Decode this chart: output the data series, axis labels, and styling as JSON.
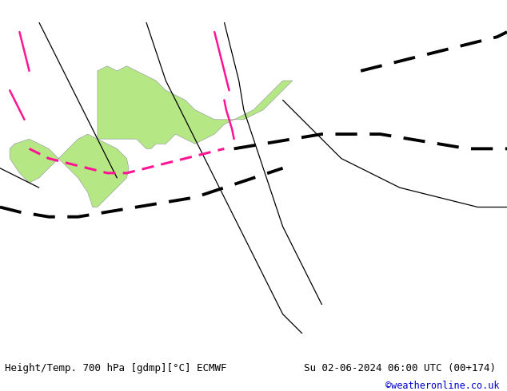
{
  "title_left": "Height/Temp. 700 hPa [gdmp][°C] ECMWF",
  "title_right": "Su 02-06-2024 06:00 UTC (00+174)",
  "title_right2": "©weatheronline.co.uk",
  "bg_land_green": "#b5e884",
  "bg_land_gray": "#d4d4d4",
  "bg_sea": "#c8c8d0",
  "border_color": "#9090a0",
  "text_color": "#000000",
  "title_color2": "#0000cc",
  "font_size_title": 9,
  "xlim": [
    -10,
    42
  ],
  "ylim": [
    24,
    56
  ],
  "figsize": [
    6.34,
    4.9
  ],
  "dpi": 100,
  "map_extent": [
    -10,
    42,
    24,
    56
  ],
  "black_thin_lines": [
    {
      "lon": [
        -6,
        -5,
        -4,
        -3,
        -2,
        -1,
        0,
        1,
        1.5,
        2
      ],
      "lat": [
        56,
        54,
        52,
        50,
        48,
        46,
        44,
        42,
        41,
        40
      ]
    },
    {
      "lon": [
        13,
        13.5,
        14,
        14.5,
        15,
        16,
        17,
        18,
        19,
        20,
        21,
        22,
        23
      ],
      "lat": [
        56,
        54,
        52,
        50,
        47,
        44,
        41,
        38,
        35,
        33,
        31,
        29,
        27
      ]
    },
    {
      "lon": [
        5,
        6,
        7,
        8,
        9,
        10,
        11,
        12,
        13,
        14,
        15,
        16,
        17,
        18,
        19,
        20,
        21
      ],
      "lat": [
        56,
        53,
        50,
        48,
        46,
        44,
        42,
        40,
        38,
        36,
        34,
        32,
        30,
        28,
        26,
        25,
        24
      ]
    },
    {
      "lon": [
        19,
        21,
        23,
        25,
        27,
        29,
        31,
        33,
        35,
        37,
        39,
        41,
        42
      ],
      "lat": [
        48,
        46,
        44,
        42,
        41,
        40,
        39,
        38.5,
        38,
        37.5,
        37,
        37,
        37
      ]
    },
    {
      "lon": [
        -10,
        -9,
        -8,
        -7,
        -6
      ],
      "lat": [
        41,
        40.5,
        40,
        39.5,
        39
      ]
    }
  ],
  "black_thick_dashed_lines": [
    {
      "lon": [
        -10,
        -8,
        -5,
        -2,
        1,
        4,
        7,
        10,
        13,
        16,
        19
      ],
      "lat": [
        37,
        36.5,
        36,
        36,
        36.5,
        37,
        37.5,
        38,
        39,
        40,
        41
      ]
    },
    {
      "lon": [
        14,
        17,
        20,
        23,
        26,
        29,
        32,
        35,
        38,
        41,
        42
      ],
      "lat": [
        43,
        43.5,
        44,
        44.5,
        44.5,
        44.5,
        44,
        43.5,
        43,
        43,
        43
      ]
    },
    {
      "lon": [
        27,
        29,
        31,
        33,
        35,
        37,
        39,
        41,
        42
      ],
      "lat": [
        51,
        51.5,
        52,
        52.5,
        53,
        53.5,
        54,
        54.5,
        55
      ]
    }
  ],
  "pink_solid_lines": [
    {
      "lon": [
        -8,
        -7.5,
        -7
      ],
      "lat": [
        55,
        53,
        51
      ]
    },
    {
      "lon": [
        -9,
        -8.5,
        -8,
        -7.5
      ],
      "lat": [
        49,
        48,
        47,
        46
      ]
    },
    {
      "lon": [
        12,
        12.5,
        13,
        13.5
      ],
      "lat": [
        55,
        53,
        51,
        49
      ]
    },
    {
      "lon": [
        13,
        13.2,
        13.5,
        13.8,
        14
      ],
      "lat": [
        48,
        47,
        46,
        45,
        44
      ]
    }
  ],
  "pink_dashed_lines": [
    {
      "lon": [
        -7,
        -5,
        -3,
        -1,
        1,
        3,
        5,
        7,
        9,
        11,
        13
      ],
      "lat": [
        43,
        42,
        41.5,
        41,
        40.5,
        40.5,
        41,
        41.5,
        42,
        42.5,
        43
      ]
    }
  ]
}
